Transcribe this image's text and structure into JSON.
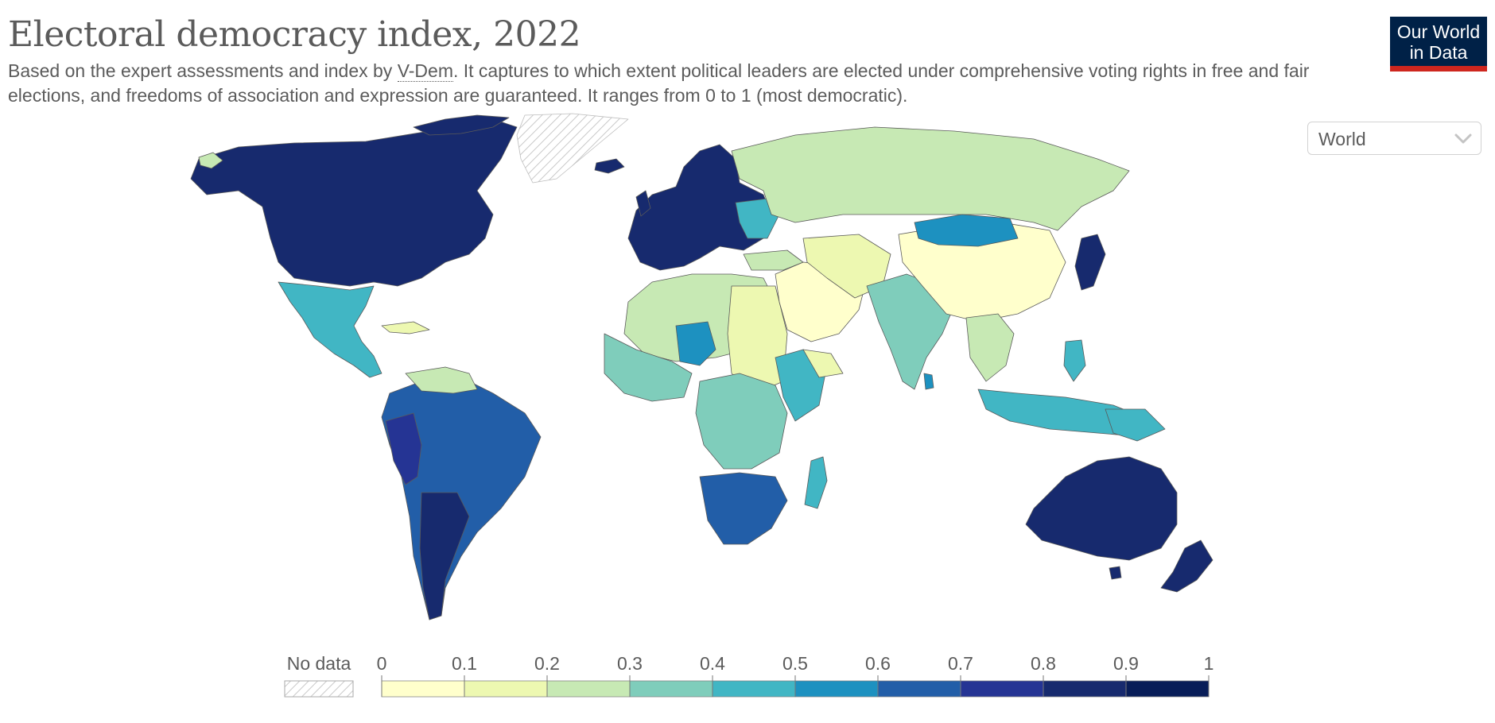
{
  "header": {
    "title": "Electoral democracy index, 2022",
    "subtitle_before_link": "Based on the expert assessments and index by ",
    "subtitle_link": "V-Dem",
    "subtitle_after_link": ". It captures to which extent political leaders are elected under comprehensive voting rights in free and fair elections, and freedoms of association and expression are guaranteed. It ranges from 0 to 1 (most democratic)."
  },
  "logo": {
    "line1": "Our World",
    "line2": "in Data",
    "bg_color": "#002147",
    "accent_color": "#ce261e"
  },
  "region_selector": {
    "selected": "World",
    "icon": "chevron-down-icon"
  },
  "legend": {
    "no_data_label": "No data",
    "ticks": [
      "0",
      "0.1",
      "0.2",
      "0.3",
      "0.4",
      "0.5",
      "0.6",
      "0.7",
      "0.8",
      "0.9",
      "1"
    ],
    "bins": [
      {
        "from": 0.0,
        "to": 0.1,
        "color": "#ffffcc"
      },
      {
        "from": 0.1,
        "to": 0.2,
        "color": "#edf8b1"
      },
      {
        "from": 0.2,
        "to": 0.3,
        "color": "#c7e9b4"
      },
      {
        "from": 0.3,
        "to": 0.4,
        "color": "#7fcdbb"
      },
      {
        "from": 0.4,
        "to": 0.5,
        "color": "#41b6c4"
      },
      {
        "from": 0.5,
        "to": 0.6,
        "color": "#1d91c0"
      },
      {
        "from": 0.6,
        "to": 0.7,
        "color": "#225ea8"
      },
      {
        "from": 0.7,
        "to": 0.8,
        "color": "#253494"
      },
      {
        "from": 0.8,
        "to": 0.9,
        "color": "#172a6e"
      },
      {
        "from": 0.9,
        "to": 1.0,
        "color": "#081d58"
      }
    ]
  },
  "map": {
    "no_data_color": "#dddddd",
    "regions": [
      {
        "name": "North America",
        "color": "#172a6e"
      },
      {
        "name": "Greenland",
        "color": "no-data"
      },
      {
        "name": "Mexico & Central America",
        "color": "#41b6c4"
      },
      {
        "name": "South America",
        "color": "#225ea8"
      },
      {
        "name": "Europe",
        "color": "#172a6e"
      },
      {
        "name": "Russia",
        "color": "#c7e9b4"
      },
      {
        "name": "North Africa",
        "color": "#c7e9b4"
      },
      {
        "name": "Sub-Saharan Africa",
        "color": "#7fcdbb"
      },
      {
        "name": "Southern Africa",
        "color": "#225ea8"
      },
      {
        "name": "Middle East",
        "color": "#ffffcc"
      },
      {
        "name": "India",
        "color": "#7fcdbb"
      },
      {
        "name": "China",
        "color": "#ffffcc"
      },
      {
        "name": "Mongolia",
        "color": "#1d91c0"
      },
      {
        "name": "Japan",
        "color": "#172a6e"
      },
      {
        "name": "Southeast Asia",
        "color": "#41b6c4"
      },
      {
        "name": "Australia",
        "color": "#172a6e"
      },
      {
        "name": "New Zealand",
        "color": "#172a6e"
      }
    ]
  }
}
